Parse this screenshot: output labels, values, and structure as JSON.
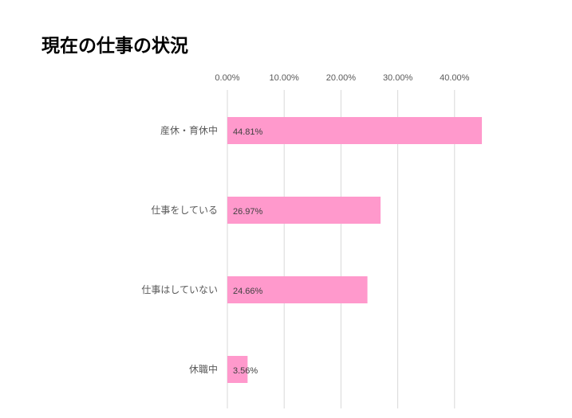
{
  "chart_data": {
    "type": "bar",
    "orientation": "horizontal",
    "title": "現在の仕事の状況",
    "categories": [
      "産休・育休中",
      "仕事をしている",
      "仕事はしていない",
      "休職中"
    ],
    "values": [
      44.81,
      26.97,
      24.66,
      3.56
    ],
    "data_labels": [
      "44.81%",
      "26.97%",
      "24.66%",
      "3.56%"
    ],
    "x_ticks": [
      0,
      10,
      20,
      30,
      40
    ],
    "x_tick_labels": [
      "0.00%",
      "10.00%",
      "20.00%",
      "30.00%",
      "40.00%"
    ],
    "xlim": [
      0,
      45
    ],
    "grid": true,
    "xaxis_position": "top",
    "legend": "none",
    "colors": {
      "bar": "#ff99cc",
      "grid": "#d9d9d9",
      "tick_text": "#595959",
      "label_text": "#404040"
    }
  }
}
